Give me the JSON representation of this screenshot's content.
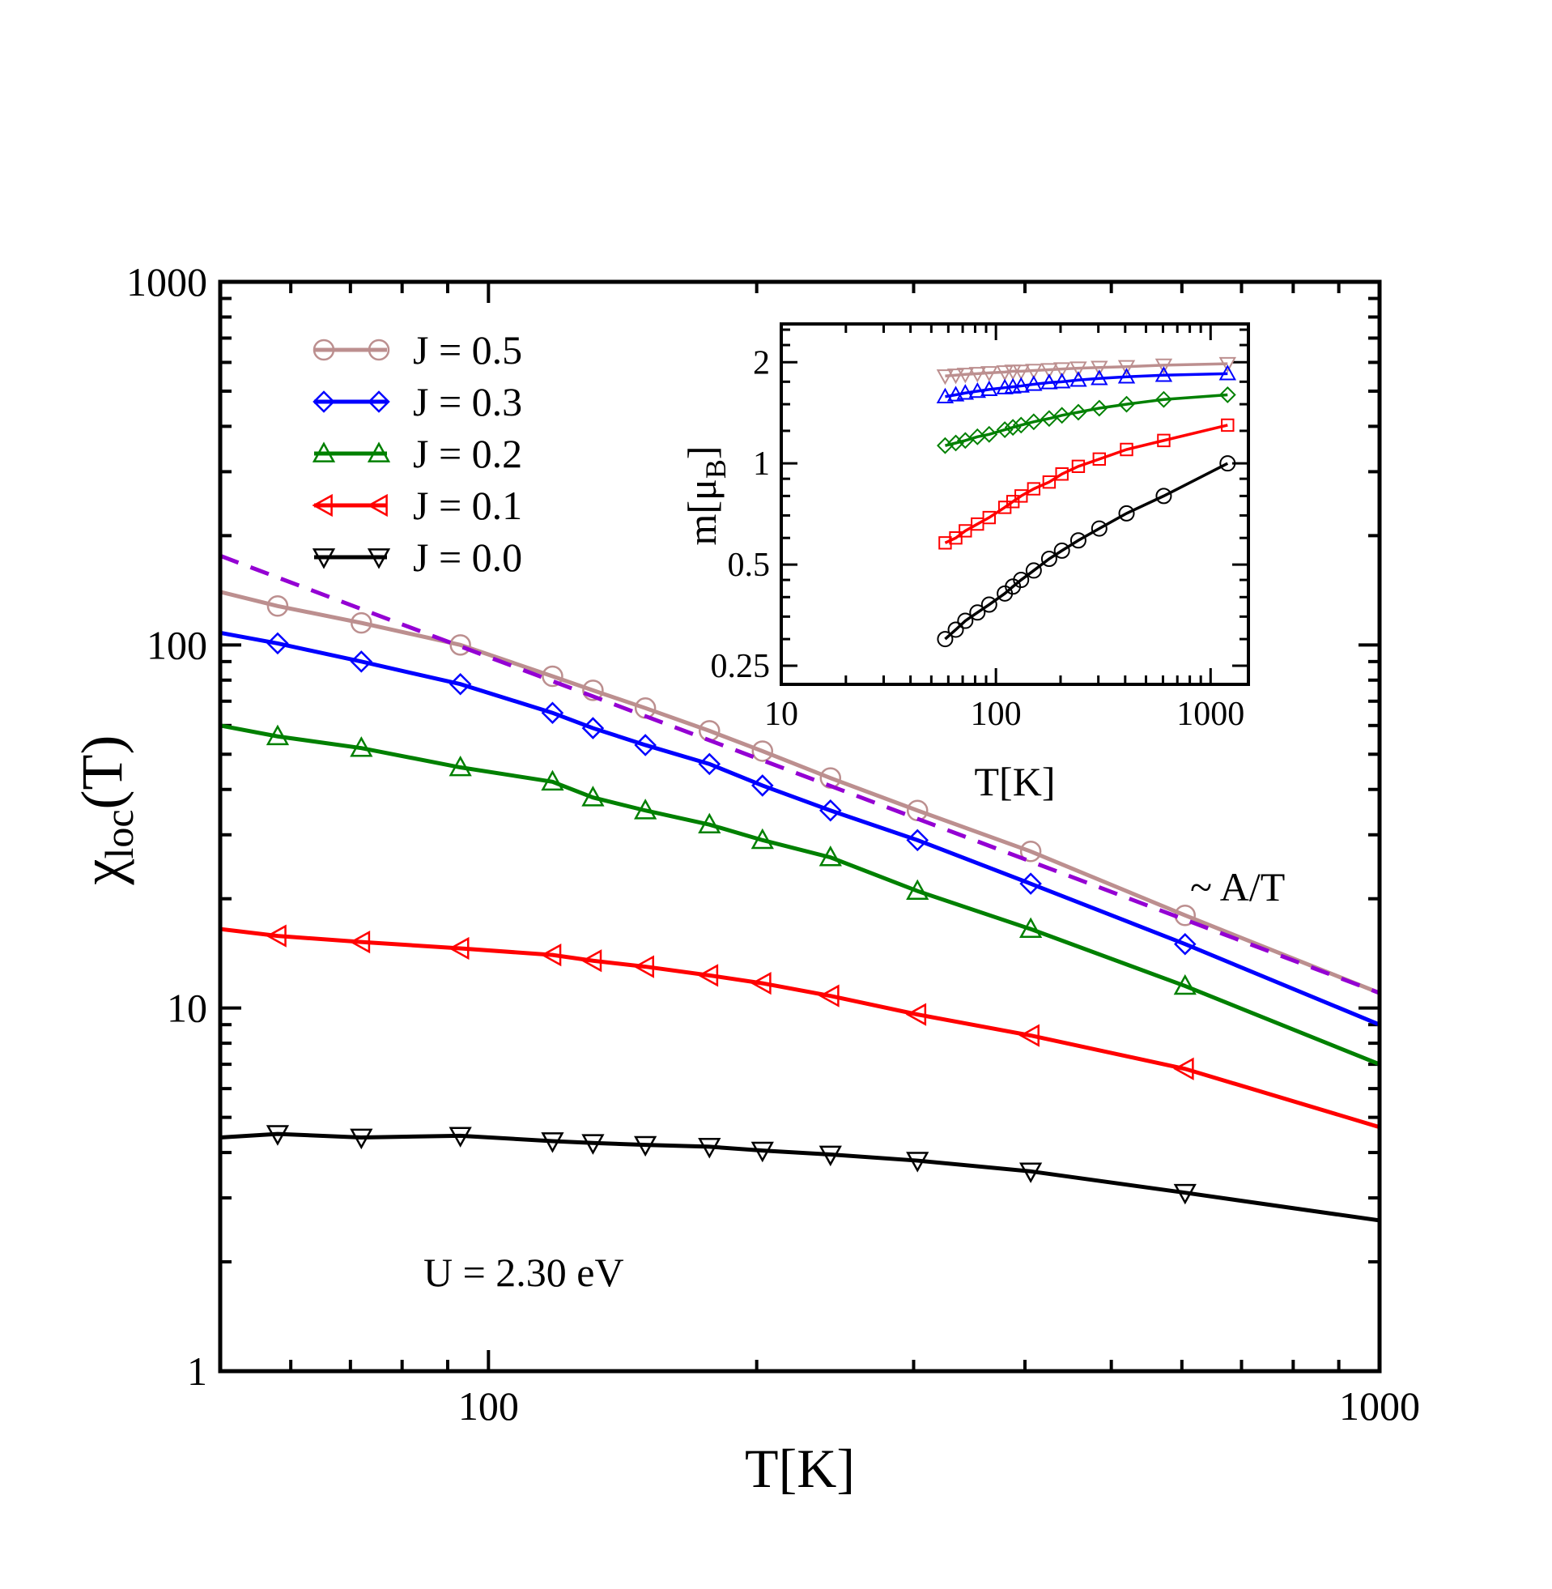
{
  "chart_data": [
    {
      "type": "line",
      "log_x": true,
      "log_y": true,
      "xlabel": "T[K]",
      "ylabel_main": "χ",
      "ylabel_sub": "loc",
      "ylabel_tail": "(T)",
      "xlim": [
        50,
        1000
      ],
      "ylim": [
        1,
        1000
      ],
      "x_ticks": [
        {
          "value": 100,
          "label": "100"
        },
        {
          "value": 1000,
          "label": "1000"
        }
      ],
      "y_ticks": [
        {
          "value": 1,
          "label": "1"
        },
        {
          "value": 10,
          "label": "10"
        },
        {
          "value": 100,
          "label": "100"
        },
        {
          "value": 1000,
          "label": "1000"
        }
      ],
      "annotations": {
        "param": "U = 2.30 eV",
        "fit": "~ A/T"
      },
      "series": [
        {
          "name": "J = 0.5",
          "color": "#bc8f8f",
          "marker": "circle",
          "x": [
            50,
            58,
            72,
            93,
            118,
            131,
            150,
            177,
            203,
            242,
            303,
            406,
            605,
            1000
          ],
          "y": [
            140,
            128,
            115,
            100,
            82,
            75,
            67,
            58,
            51,
            43,
            35,
            27,
            18,
            11
          ]
        },
        {
          "name": "J = 0.3",
          "color": "#0000ff",
          "marker": "diamond",
          "x": [
            50,
            58,
            72,
            93,
            118,
            131,
            150,
            177,
            203,
            242,
            303,
            406,
            605,
            1000
          ],
          "y": [
            108,
            101,
            90,
            78,
            65,
            59,
            53,
            47,
            41,
            35,
            29,
            22,
            15,
            9
          ]
        },
        {
          "name": "J = 0.2",
          "color": "#008000",
          "marker": "triangle-up",
          "x": [
            50,
            58,
            72,
            93,
            118,
            131,
            150,
            177,
            203,
            242,
            303,
            406,
            605,
            1000
          ],
          "y": [
            60,
            56,
            52,
            46,
            42,
            38,
            35,
            32,
            29,
            26,
            21,
            16.5,
            11.5,
            7
          ]
        },
        {
          "name": "J = 0.1",
          "color": "#ff0000",
          "marker": "triangle-left",
          "x": [
            50,
            58,
            72,
            93,
            118,
            131,
            150,
            177,
            203,
            242,
            303,
            406,
            605,
            1000
          ],
          "y": [
            16.5,
            15.8,
            15.2,
            14.6,
            14.0,
            13.5,
            13.0,
            12.3,
            11.7,
            10.8,
            9.6,
            8.4,
            6.8,
            4.7
          ]
        },
        {
          "name": "J = 0.0",
          "color": "#000000",
          "marker": "triangle-down",
          "x": [
            50,
            58,
            72,
            93,
            118,
            131,
            150,
            177,
            203,
            242,
            303,
            406,
            605,
            1000
          ],
          "y": [
            4.4,
            4.5,
            4.4,
            4.45,
            4.3,
            4.25,
            4.2,
            4.15,
            4.05,
            3.95,
            3.8,
            3.55,
            3.1,
            2.6
          ]
        },
        {
          "name": "~ A/T",
          "color": "#9400d3",
          "marker": "none",
          "dashed": true,
          "x": [
            50,
            1000
          ],
          "y": [
            176,
            11
          ]
        }
      ]
    },
    {
      "type": "line",
      "log_x": true,
      "log_y": true,
      "xlabel": "T[K]",
      "ylabel": "m[μB]",
      "ylabel_main": "m[μ",
      "ylabel_sub": "B",
      "ylabel_tail": "]",
      "xlim": [
        10,
        1500
      ],
      "ylim": [
        0.22,
        2.6
      ],
      "x_ticks": [
        {
          "value": 10,
          "label": "10"
        },
        {
          "value": 100,
          "label": "100"
        },
        {
          "value": 1000,
          "label": "1000"
        }
      ],
      "y_ticks": [
        {
          "value": 0.25,
          "label": "0.25"
        },
        {
          "value": 0.5,
          "label": "0.5"
        },
        {
          "value": 1,
          "label": "1"
        },
        {
          "value": 2,
          "label": "2"
        }
      ],
      "series": [
        {
          "name": "J = 0.5",
          "color": "#bc8f8f",
          "marker": "triangle-down",
          "x": [
            58,
            65,
            72,
            82,
            93,
            110,
            120,
            131,
            150,
            177,
            203,
            242,
            303,
            406,
            605,
            1200
          ],
          "y": [
            1.82,
            1.83,
            1.84,
            1.85,
            1.86,
            1.87,
            1.88,
            1.88,
            1.89,
            1.9,
            1.91,
            1.92,
            1.93,
            1.94,
            1.96,
            1.98
          ]
        },
        {
          "name": "J = 0.3",
          "color": "#0000ff",
          "marker": "triangle-up",
          "x": [
            58,
            65,
            72,
            82,
            93,
            110,
            120,
            131,
            150,
            177,
            203,
            242,
            303,
            406,
            605,
            1200
          ],
          "y": [
            1.58,
            1.6,
            1.62,
            1.64,
            1.66,
            1.68,
            1.69,
            1.7,
            1.72,
            1.74,
            1.75,
            1.77,
            1.79,
            1.81,
            1.83,
            1.85
          ]
        },
        {
          "name": "J = 0.2",
          "color": "#008000",
          "marker": "diamond",
          "x": [
            58,
            65,
            72,
            82,
            93,
            110,
            120,
            131,
            150,
            177,
            203,
            242,
            303,
            406,
            605,
            1200
          ],
          "y": [
            1.13,
            1.15,
            1.17,
            1.2,
            1.22,
            1.26,
            1.28,
            1.3,
            1.33,
            1.36,
            1.39,
            1.42,
            1.46,
            1.5,
            1.55,
            1.6
          ]
        },
        {
          "name": "J = 0.1",
          "color": "#ff0000",
          "marker": "square",
          "x": [
            58,
            65,
            72,
            82,
            93,
            110,
            120,
            131,
            150,
            177,
            203,
            242,
            303,
            406,
            605,
            1200
          ],
          "y": [
            0.58,
            0.6,
            0.63,
            0.66,
            0.69,
            0.74,
            0.77,
            0.8,
            0.84,
            0.88,
            0.93,
            0.98,
            1.03,
            1.1,
            1.17,
            1.3
          ]
        },
        {
          "name": "J = 0.0",
          "color": "#000000",
          "marker": "circle",
          "x": [
            58,
            65,
            72,
            82,
            93,
            110,
            120,
            131,
            150,
            177,
            203,
            242,
            303,
            406,
            605,
            1200
          ],
          "y": [
            0.3,
            0.32,
            0.34,
            0.36,
            0.38,
            0.41,
            0.43,
            0.45,
            0.48,
            0.52,
            0.55,
            0.59,
            0.64,
            0.71,
            0.8,
            1.0
          ]
        }
      ]
    }
  ]
}
